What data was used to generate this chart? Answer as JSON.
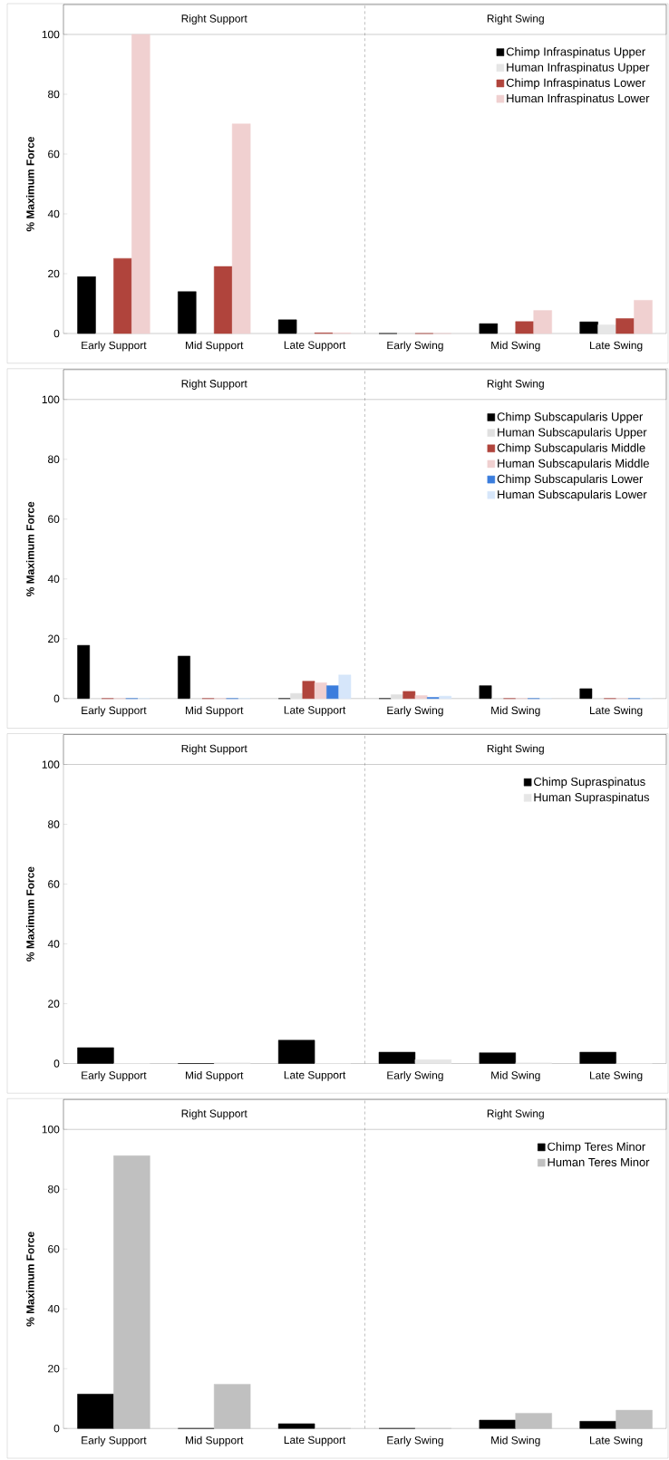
{
  "chart_data": [
    {
      "type": "bar",
      "ylabel": "% Maximum Force",
      "categories": [
        "Early Support",
        "Mid Support",
        "Late Support",
        "Early Swing",
        "Mid Swing",
        "Late Swing"
      ],
      "ylim": [
        0,
        100
      ],
      "yticks": [
        0,
        20,
        40,
        60,
        80,
        100
      ],
      "legend": "top right",
      "annotations": [
        "Right Support",
        "Right Swing"
      ],
      "series": [
        {
          "name": "Chimp Infraspinatus Upper",
          "color": "#000000",
          "values": [
            19,
            14,
            4.6,
            0,
            3.3,
            3.9
          ]
        },
        {
          "name": "Human Infraspinatus Upper",
          "color": "#e6e6e6",
          "values": [
            0,
            0,
            0,
            0,
            0,
            2.9
          ]
        },
        {
          "name": "Chimp Infraspinatus Lower",
          "color": "#b0443c",
          "values": [
            25.1,
            22.4,
            0.2,
            0,
            4,
            5
          ]
        },
        {
          "name": "Human Infraspinatus Lower",
          "color": "#f0d0d0",
          "values": [
            100,
            70.1,
            0.2,
            0,
            7.7,
            11.1
          ]
        }
      ]
    },
    {
      "type": "bar",
      "ylabel": "% Maximum Force",
      "categories": [
        "Early Support",
        "Mid Support",
        "Late Support",
        "Early Swing",
        "Mid Swing",
        "Late Swing"
      ],
      "ylim": [
        0,
        100
      ],
      "yticks": [
        0,
        20,
        40,
        60,
        80,
        100
      ],
      "legend": "top right",
      "annotations": [
        "Right Support",
        "Right Swing"
      ],
      "series": [
        {
          "name": "Chimp Subscapularis Upper",
          "color": "#000000",
          "values": [
            17.8,
            14.2,
            0,
            0,
            4.3,
            3.3
          ]
        },
        {
          "name": "Human Subscapularis Upper",
          "color": "#e0e0e0",
          "values": [
            0,
            0,
            1.7,
            1.3,
            0,
            0
          ]
        },
        {
          "name": "Chimp Subscapularis Middle",
          "color": "#b0443c",
          "values": [
            0,
            0,
            5.8,
            2.4,
            0,
            0
          ]
        },
        {
          "name": "Human Subscapularis Middle",
          "color": "#f0d0d0",
          "values": [
            0,
            0,
            5.3,
            1,
            0,
            0
          ]
        },
        {
          "name": "Chimp Subscapularis Lower",
          "color": "#3b7ddd",
          "values": [
            0,
            0,
            4.3,
            0.4,
            0,
            0
          ]
        },
        {
          "name": "Human Subscapularis Lower",
          "color": "#d6e6fa",
          "values": [
            0,
            0,
            7.9,
            0.8,
            0,
            0
          ]
        }
      ]
    },
    {
      "type": "bar",
      "ylabel": "% Maximum Force",
      "categories": [
        "Early Support",
        "Mid Support",
        "Late Support",
        "Early Swing",
        "Mid Swing",
        "Late Swing"
      ],
      "ylim": [
        0,
        100
      ],
      "yticks": [
        0,
        20,
        40,
        60,
        80,
        100
      ],
      "legend": "top right",
      "annotations": [
        "Right Support",
        "Right Swing"
      ],
      "series": [
        {
          "name": "Chimp Supraspinatus",
          "color": "#000000",
          "values": [
            5.3,
            0,
            7.8,
            3.8,
            3.6,
            3.8
          ]
        },
        {
          "name": "Human Supraspinatus",
          "color": "#e6e6e6",
          "values": [
            0,
            0.2,
            0,
            1.3,
            0.2,
            0
          ]
        }
      ]
    },
    {
      "type": "bar",
      "ylabel": "% Maximum Force",
      "categories": [
        "Early Support",
        "Mid Support",
        "Late Support",
        "Early Swing",
        "Mid Swing",
        "Late Swing"
      ],
      "ylim": [
        0,
        100
      ],
      "yticks": [
        0,
        20,
        40,
        60,
        80,
        100
      ],
      "legend": "top right",
      "annotations": [
        "Right Support",
        "Right Swing"
      ],
      "series": [
        {
          "name": "Chimp Teres Minor",
          "color": "#000000",
          "values": [
            11.5,
            0,
            1.6,
            0,
            2.8,
            2.4
          ]
        },
        {
          "name": "Human Teres Minor",
          "color": "#c0c0c0",
          "values": [
            91.2,
            14.8,
            0,
            0,
            5.1,
            6.1
          ]
        }
      ]
    }
  ]
}
